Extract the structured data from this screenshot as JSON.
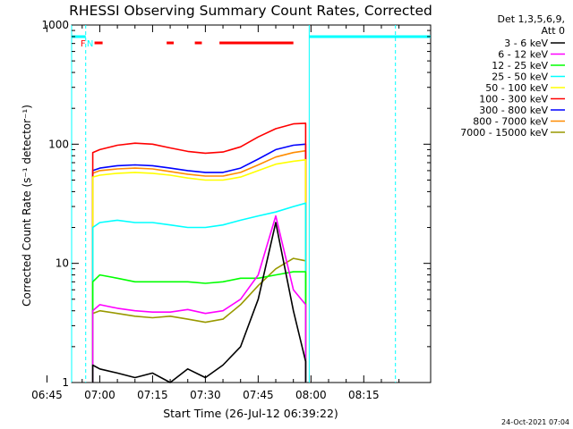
{
  "chart_data": {
    "type": "line",
    "title": "RHESSI Observing Summary Count Rates, Corrected",
    "xlabel": "Start Time (26-Jul-12 06:39:22)",
    "ylabel": "Corrected Count Rate (s⁻¹ detector⁻¹)",
    "yscale": "log",
    "ylim": [
      1,
      1000
    ],
    "xlim_minutes": [
      -8,
      94
    ],
    "x_unit": "minutes after 07:00 UT",
    "x_ticks": [
      {
        "label": "06:45",
        "t": -15
      },
      {
        "label": "07:00",
        "t": 0
      },
      {
        "label": "07:15",
        "t": 15
      },
      {
        "label": "07:30",
        "t": 30
      },
      {
        "label": "07:45",
        "t": 45
      },
      {
        "label": "08:00",
        "t": 60
      },
      {
        "label": "08:15",
        "t": 75
      }
    ],
    "y_ticks": [
      {
        "label": "1",
        "v": 1
      },
      {
        "label": "10",
        "v": 10
      },
      {
        "label": "100",
        "v": 100
      },
      {
        "label": "1000",
        "v": 1000
      }
    ],
    "legend_header": [
      "Det 1,3,5,6,9,",
      "Att 0"
    ],
    "legend_position": "right",
    "x": [
      -2,
      0,
      5,
      10,
      15,
      20,
      25,
      30,
      35,
      40,
      45,
      50,
      55,
      58.5
    ],
    "series": [
      {
        "name": "3 - 6 keV",
        "color": "#000000",
        "values": [
          1.4,
          1.3,
          1.2,
          1.1,
          1.2,
          1.0,
          1.3,
          1.1,
          1.4,
          2.0,
          5.0,
          22.0,
          4.0,
          1.5
        ]
      },
      {
        "name": "6 - 12 keV",
        "color": "#ff00ff",
        "values": [
          4.0,
          4.5,
          4.2,
          4.0,
          3.9,
          3.9,
          4.1,
          3.8,
          4.0,
          5.0,
          8.0,
          25.0,
          6.0,
          4.5
        ]
      },
      {
        "name": "12 - 25 keV",
        "color": "#00ff00",
        "values": [
          7.0,
          8.0,
          7.5,
          7.0,
          7.0,
          7.0,
          7.0,
          6.8,
          7.0,
          7.5,
          7.5,
          8.0,
          8.5,
          8.5
        ]
      },
      {
        "name": "25 - 50 keV",
        "color": "#00ffff",
        "values": [
          20.0,
          22.0,
          23.0,
          22.0,
          22.0,
          21.0,
          20.0,
          20.0,
          21.0,
          23.0,
          25.0,
          27.0,
          30.0,
          32.0
        ]
      },
      {
        "name": "50 - 100 keV",
        "color": "#ffff00",
        "values": [
          53.0,
          55.0,
          57.0,
          58.0,
          57.0,
          55.0,
          52.0,
          50.0,
          50.0,
          53.0,
          60.0,
          68.0,
          72.0,
          74.0
        ]
      },
      {
        "name": "100 - 300 keV",
        "color": "#ff0000",
        "values": [
          85.0,
          90.0,
          98.0,
          102.0,
          100.0,
          93.0,
          87.0,
          84.0,
          86.0,
          95.0,
          115.0,
          135.0,
          148.0,
          150.0
        ]
      },
      {
        "name": "300 - 800 keV",
        "color": "#0000ff",
        "values": [
          60.0,
          63.0,
          66.0,
          67.0,
          66.0,
          63.0,
          60.0,
          58.0,
          58.0,
          63.0,
          75.0,
          90.0,
          98.0,
          100.0
        ]
      },
      {
        "name": "800 - 7000 keV",
        "color": "#ff8c00",
        "values": [
          57.0,
          60.0,
          62.0,
          63.0,
          62.0,
          59.0,
          56.0,
          54.0,
          54.0,
          58.0,
          67.0,
          78.0,
          85.0,
          88.0
        ]
      },
      {
        "name": "7000 - 15000 keV",
        "color": "#999900",
        "values": [
          3.8,
          4.0,
          3.8,
          3.6,
          3.5,
          3.6,
          3.4,
          3.2,
          3.4,
          4.5,
          6.5,
          9.0,
          11.0,
          10.5
        ]
      }
    ],
    "night_intervals": [
      [
        -53,
        -4
      ],
      [
        59.5,
        100
      ]
    ],
    "saa_boundaries": [
      -53,
      -4,
      59.5,
      84
    ],
    "flags": [
      {
        "label": "F",
        "t": -4,
        "color": "#ff0000"
      },
      {
        "label": "N",
        "t": -3,
        "color": "#00ffff"
      }
    ],
    "flare_intervals": [
      [
        -1.5,
        0.8
      ],
      [
        19,
        21
      ],
      [
        27,
        29
      ],
      [
        34,
        55
      ]
    ],
    "grid": false
  },
  "footer": {
    "timestamp": "24-Oct-2021 07:04"
  }
}
